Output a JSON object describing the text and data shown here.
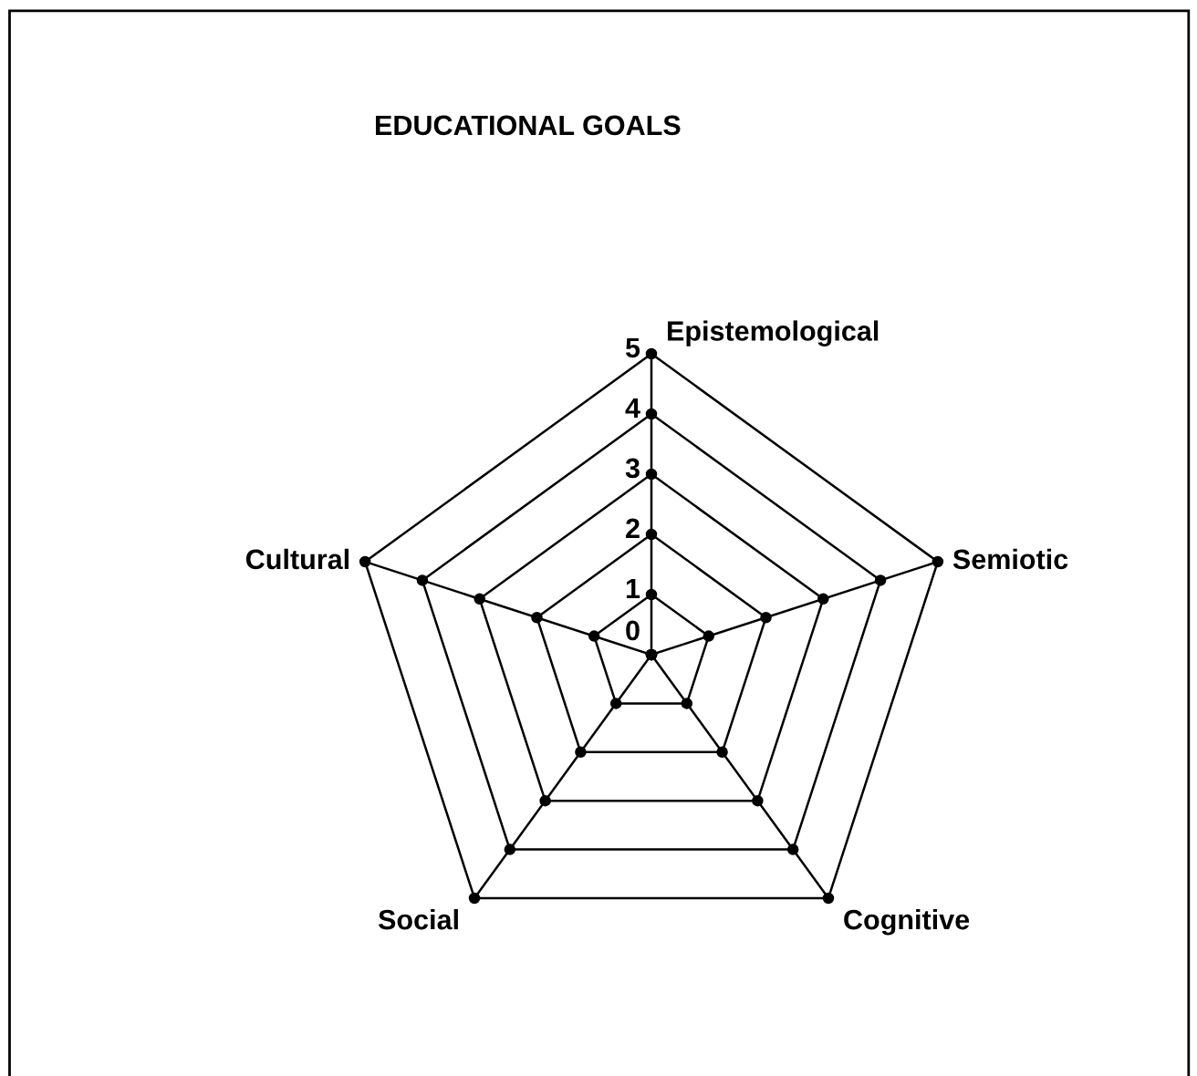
{
  "chart_data": {
    "type": "radar",
    "title": "EDUCATIONAL GOALS",
    "categories": [
      "Epistemological",
      "Semiotic",
      "Cognitive",
      "Social",
      "Cultural"
    ],
    "ylim": [
      0,
      5
    ],
    "yticks": [
      0,
      1,
      2,
      3,
      4,
      5
    ],
    "grid": true,
    "marker": "circle"
  }
}
